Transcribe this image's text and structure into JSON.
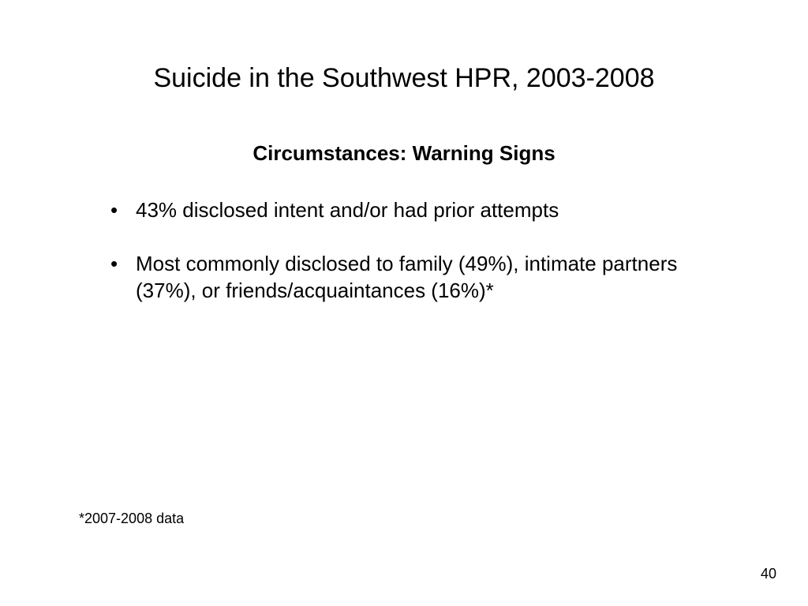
{
  "slide": {
    "title": "Suicide in the Southwest HPR, 2003-2008",
    "subtitle": "Circumstances: Warning Signs",
    "bullets": [
      "43% disclosed intent and/or had prior attempts",
      "Most commonly disclosed to family (49%), intimate partners (37%), or friends/acquaintances (16%)*"
    ],
    "footnote": "*2007-2008 data",
    "page_number": "40"
  },
  "style": {
    "background_color": "#ffffff",
    "text_color": "#000000",
    "title_fontsize": 34,
    "subtitle_fontsize": 26,
    "bullet_fontsize": 26,
    "footnote_fontsize": 18,
    "font_family": "Arial"
  }
}
